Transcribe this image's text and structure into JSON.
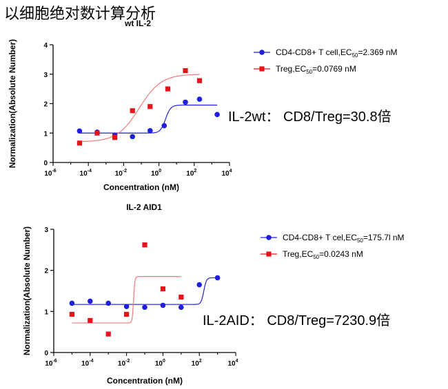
{
  "page_title": "以细胞绝对数计算分析",
  "colors": {
    "cd8": "#1f1fdc",
    "treg": "#e8121b",
    "treg_line": "#f07a7a"
  },
  "chart_data": [
    {
      "type": "scatter",
      "title": "wt IL-2",
      "xlabel": "Concentration (nM)",
      "ylabel": "Normalization(Absolute Number)",
      "xscale": "log",
      "xlim": [
        -6,
        4
      ],
      "ylim": [
        0,
        4
      ],
      "xticks": [
        "10-6",
        "10-4",
        "10-2",
        "100",
        "102",
        "104"
      ],
      "yticks": [
        "0",
        "1",
        "2",
        "3",
        "4"
      ],
      "legend_position": "top-right",
      "series": [
        {
          "name": "CD4-CD8+ T cell,EC50=2.369 nM",
          "legend_pre": "CD4-CD8+ T cell,EC",
          "legend_sub": "50",
          "legend_post": "=2.369 nM",
          "marker": "circle",
          "color": "#1f1fdc",
          "x": [
            -4.5,
            -3.5,
            -2.5,
            -1.5,
            -0.5,
            0.3,
            1.5,
            2.3,
            3.3
          ],
          "y": [
            1.07,
            1.03,
            0.93,
            0.88,
            1.08,
            1.25,
            2.05,
            2.15,
            1.63
          ]
        },
        {
          "name": "Treg,EC50=0.0769 nM",
          "legend_pre": "Treg,EC",
          "legend_sub": "50",
          "legend_post": "=0.0769 nM",
          "marker": "square",
          "color": "#e8121b",
          "x": [
            -4.5,
            -3.5,
            -2.5,
            -1.5,
            -0.5,
            0.5,
            1.5,
            2.3
          ],
          "y": [
            0.66,
            1.0,
            0.85,
            1.76,
            1.9,
            2.5,
            3.12,
            2.78
          ]
        }
      ],
      "fits": [
        {
          "series": "CD8",
          "color": "#1f1fdc",
          "bottom": 1.0,
          "top": 1.95,
          "logEC50": 0.3746,
          "hill": 3.0,
          "xrange": [
            -4.5,
            3.3
          ]
        },
        {
          "series": "Treg",
          "color": "#f07a7a",
          "bottom": 0.7,
          "top": 3.0,
          "logEC50": -1.114,
          "hill": 0.7,
          "xrange": [
            -4.5,
            2.3
          ]
        }
      ],
      "ratio_text": "IL-2wt：  CD8/Treg=30.8倍"
    },
    {
      "type": "scatter",
      "title": "IL-2 AID1",
      "xlabel": "Concentration (nM)",
      "ylabel": "Normalization(Absolute Number)",
      "xscale": "log",
      "xlim": [
        -6,
        4
      ],
      "ylim": [
        0,
        3
      ],
      "xticks": [
        "10-6",
        "10-4",
        "10-2",
        "100",
        "102",
        "104"
      ],
      "yticks": [
        "0",
        "1",
        "2",
        "3"
      ],
      "legend_position": "top-right",
      "series": [
        {
          "name": "CD4-CD8+ T cel,EC50=175.7l nM",
          "legend_pre": "CD4-CD8+ T cel,EC",
          "legend_sub": "50",
          "legend_post": "=175.7l nM",
          "marker": "circle",
          "color": "#1f1fdc",
          "x": [
            -5.0,
            -4.0,
            -3.0,
            -2.0,
            -1.0,
            0.0,
            1.0,
            2.0,
            3.0
          ],
          "y": [
            1.2,
            1.25,
            1.2,
            1.12,
            1.1,
            1.15,
            1.1,
            1.65,
            1.82
          ]
        },
        {
          "name": "Treg,EC50=0.0243 nM",
          "legend_pre": "Treg,EC",
          "legend_sub": "50",
          "legend_post": "=0.0243 nM",
          "marker": "square",
          "color": "#e8121b",
          "x": [
            -5.0,
            -4.0,
            -3.0,
            -2.0,
            -1.0,
            0.0,
            1.0
          ],
          "y": [
            0.93,
            0.78,
            0.45,
            0.93,
            2.62,
            1.55,
            1.35
          ]
        }
      ],
      "fits": [
        {
          "series": "CD8",
          "color": "#1f1fdc",
          "bottom": 1.17,
          "top": 1.82,
          "logEC50": 2.2448,
          "hill": 6.0,
          "xrange": [
            -5.0,
            3.0
          ]
        },
        {
          "series": "Treg",
          "color": "#f07a7a",
          "bottom": 0.72,
          "top": 1.85,
          "logEC50": -1.614,
          "hill": 12.0,
          "xrange": [
            -5.0,
            1.0
          ]
        }
      ],
      "ratio_text": "IL-2AID：  CD8/Treg=7230.9倍"
    }
  ]
}
